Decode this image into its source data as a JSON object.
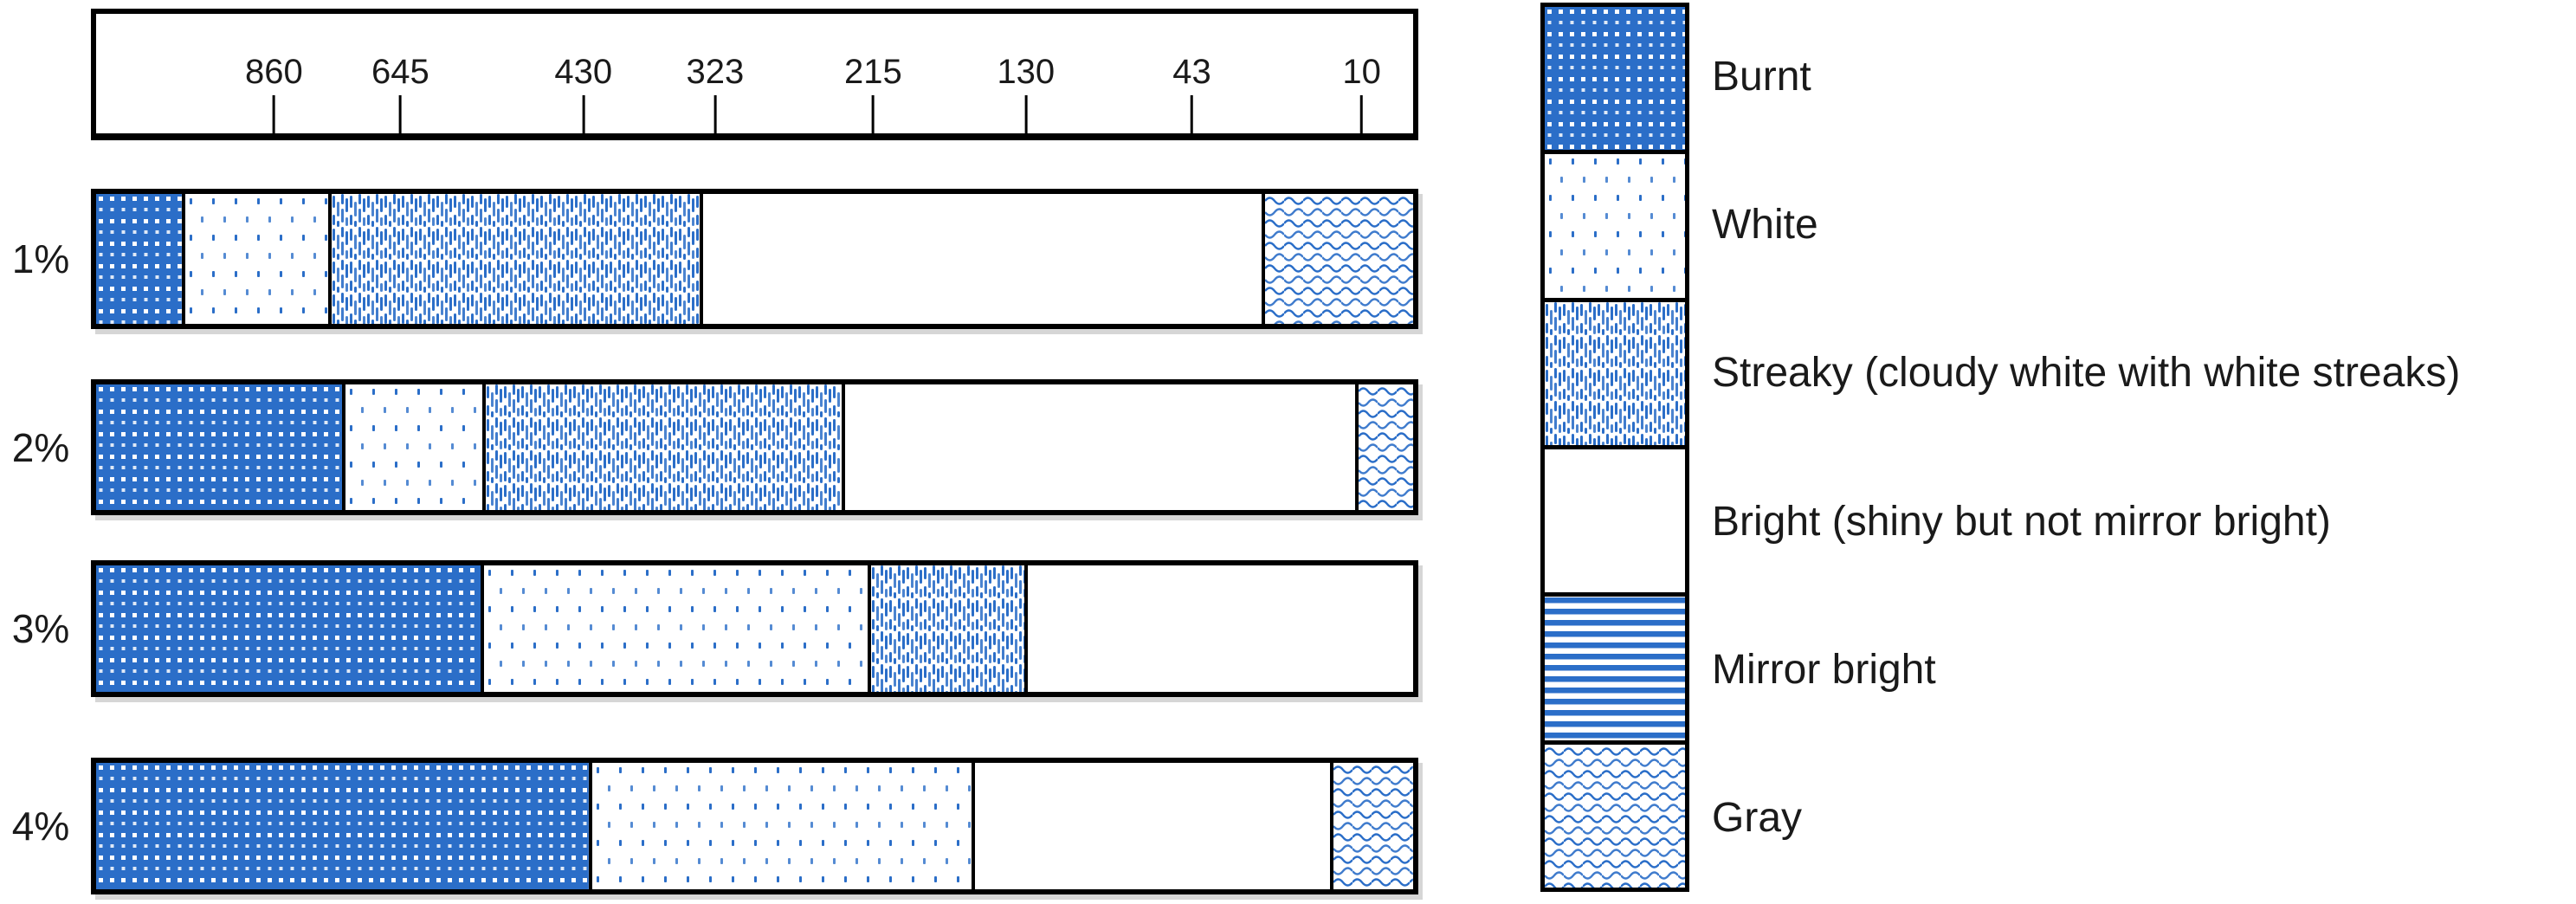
{
  "chart_data": {
    "type": "bar",
    "orientation": "horizontal-stacked",
    "title": "",
    "categories": [
      "1%",
      "2%",
      "3%",
      "4%"
    ],
    "series": [
      {
        "name": "Burnt",
        "values": [
          6.5,
          18.7,
          29.2,
          37.4
        ]
      },
      {
        "name": "White",
        "values": [
          11.1,
          10.6,
          29.4,
          29.1
        ]
      },
      {
        "name": "Streaky (cloudy white with white streaks)",
        "values": [
          28.2,
          27.3,
          11.9,
          0
        ]
      },
      {
        "name": "Bright (shiny but not mirror bright)",
        "values": [
          42.7,
          39.0,
          29.5,
          27.2
        ]
      },
      {
        "name": "Mirror bright",
        "values": [
          0,
          0,
          0,
          0
        ]
      },
      {
        "name": "Gray",
        "values": [
          11.5,
          4.4,
          0,
          6.3
        ]
      }
    ],
    "values_unit": "percent of bar length",
    "axis": {
      "position": "top",
      "tick_labels": [
        "860",
        "645",
        "430",
        "323",
        "215",
        "130",
        "43",
        "10"
      ],
      "tick_positions_pct": [
        13.5,
        23.1,
        37.0,
        47.0,
        59.0,
        70.6,
        83.2,
        96.1
      ]
    },
    "legend_position": "right",
    "grid": false
  },
  "legend": {
    "items": [
      {
        "label": "Burnt",
        "pattern": "white-dots-on-blue"
      },
      {
        "label": "White",
        "pattern": "sparse-blue-dots"
      },
      {
        "label": "Streaky (cloudy white with white streaks)",
        "pattern": "vertical-blue-dashes"
      },
      {
        "label": "Bright (shiny but not mirror bright)",
        "pattern": "plain-white"
      },
      {
        "label": "Mirror bright",
        "pattern": "horizontal-blue-stripes"
      },
      {
        "label": "Gray",
        "pattern": "blue-wavy-lines"
      }
    ]
  },
  "colors": {
    "accent_blue": "#2b6ec8",
    "border_black": "#000000",
    "text": "#1a1a1a",
    "background": "#ffffff"
  }
}
